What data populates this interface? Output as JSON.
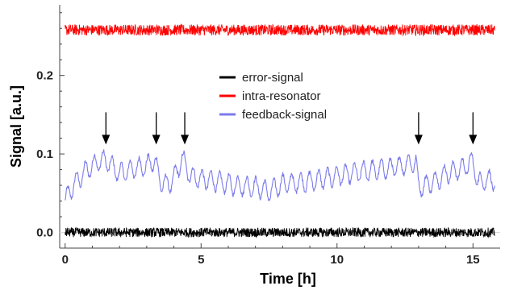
{
  "chart_data": {
    "type": "line",
    "title": "",
    "xlabel": "Time [h]",
    "ylabel": "Signal [a.u.]",
    "xlim": [
      -0.2,
      16.0
    ],
    "ylim": [
      -0.02,
      0.29
    ],
    "x_ticks": [
      0,
      5,
      10,
      15
    ],
    "x_tick_labels": [
      "0",
      "5",
      "10",
      "15"
    ],
    "y_ticks": [
      0.0,
      0.1,
      0.2
    ],
    "y_tick_labels": [
      "0.0",
      "0.1",
      "0.2"
    ],
    "grid": false,
    "legend_position": "center",
    "series": [
      {
        "name": "error-signal",
        "color": "#000000",
        "baseline": 0.0,
        "noise_amplitude": 0.006
      },
      {
        "name": "intra-resonator",
        "color": "#ff0000",
        "baseline": 0.258,
        "noise_amplitude": 0.007
      },
      {
        "name": "feedback-signal",
        "color": "#7b7bea",
        "x": [
          0,
          0.3,
          0.8,
          1.2,
          1.5,
          2.0,
          2.6,
          3.0,
          3.3,
          3.5,
          3.8,
          4.1,
          4.3,
          4.6,
          5.0,
          5.6,
          6.2,
          7.0,
          7.5,
          8.0,
          9.0,
          10.0,
          11.0,
          12.0,
          12.9,
          13.0,
          13.2,
          13.6,
          14.0,
          14.5,
          15.0,
          15.2,
          15.5,
          15.8
        ],
        "y": [
          0.04,
          0.06,
          0.08,
          0.09,
          0.092,
          0.075,
          0.082,
          0.085,
          0.092,
          0.065,
          0.06,
          0.075,
          0.095,
          0.072,
          0.068,
          0.065,
          0.06,
          0.058,
          0.052,
          0.062,
          0.065,
          0.072,
          0.078,
          0.082,
          0.09,
          0.058,
          0.06,
          0.065,
          0.075,
          0.08,
          0.09,
          0.062,
          0.068,
          0.065
        ],
        "oscillation_amplitude": 0.012,
        "oscillation_period_h": 0.33
      }
    ],
    "annotations": [
      {
        "type": "arrow",
        "x": 1.5,
        "y": 0.112
      },
      {
        "type": "arrow",
        "x": 3.35,
        "y": 0.112
      },
      {
        "type": "arrow",
        "x": 4.4,
        "y": 0.112
      },
      {
        "type": "arrow",
        "x": 13.0,
        "y": 0.112
      },
      {
        "type": "arrow",
        "x": 15.0,
        "y": 0.112
      }
    ]
  }
}
